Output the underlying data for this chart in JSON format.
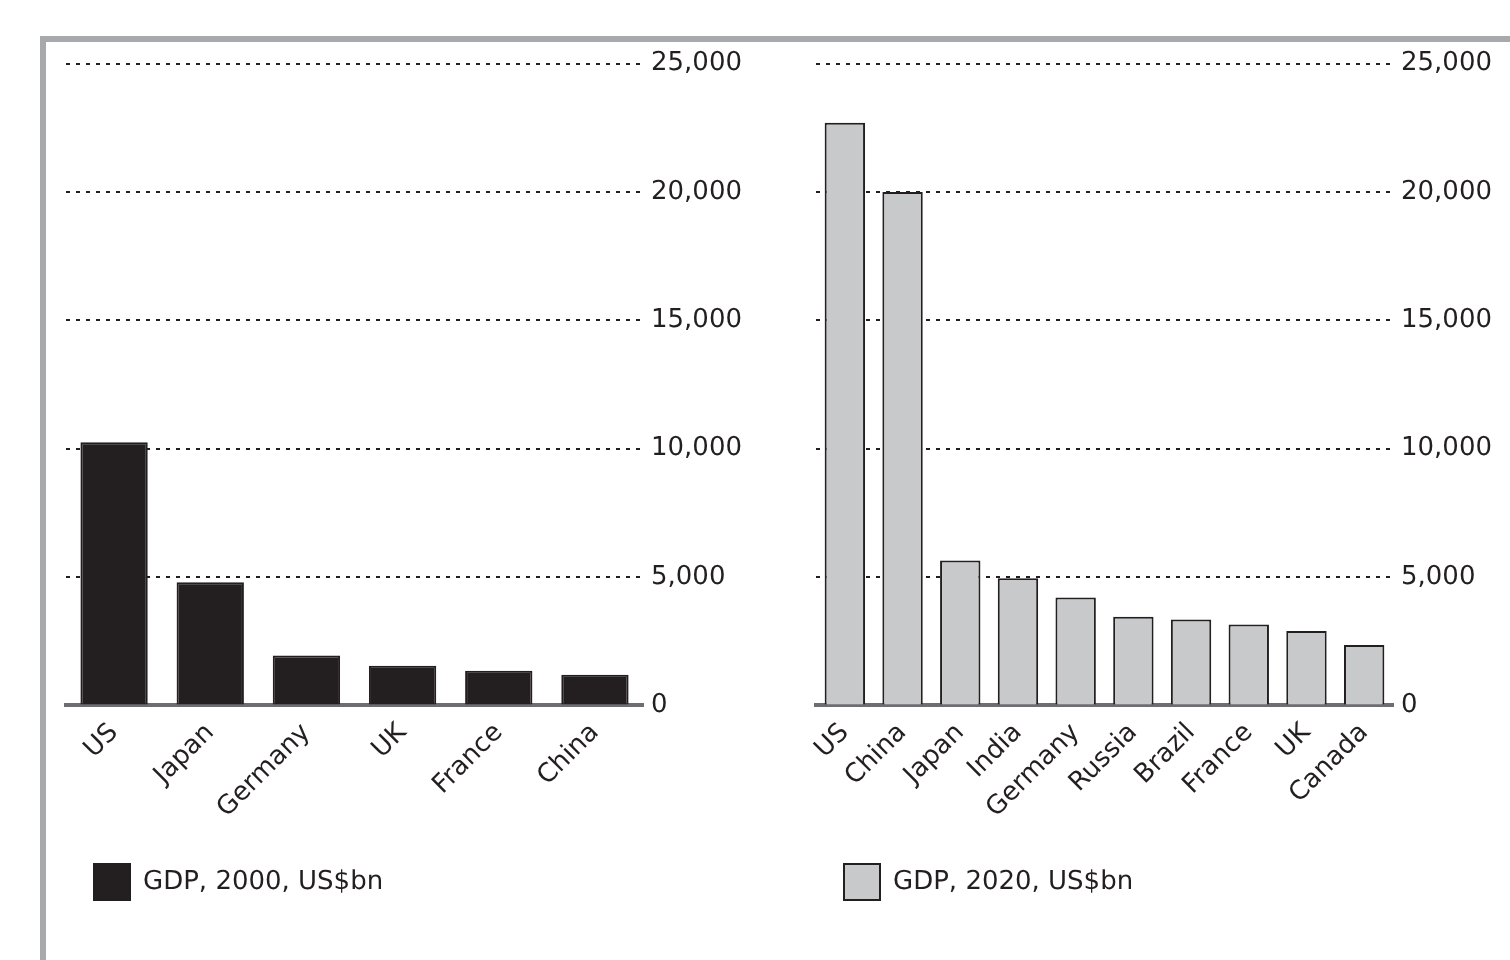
{
  "chart_data": [
    {
      "type": "bar",
      "categories": [
        "US",
        "Japan",
        "Germany",
        "UK",
        "France",
        "China"
      ],
      "series": [
        {
          "name": "GDP, 2000, US$bn",
          "color": "#231f20",
          "values": [
            10250,
            4800,
            1950,
            1550,
            1350,
            1200
          ]
        }
      ],
      "ylim": [
        0,
        25000
      ],
      "yticks": [
        0,
        {
          "value": 5000,
          "label": "5,000"
        },
        {
          "value": 10000,
          "label": "10,000"
        },
        {
          "value": 15000,
          "label": "15,000"
        },
        {
          "value": 20000,
          "label": "20,000"
        },
        {
          "value": 25000,
          "label": "25,000"
        }
      ],
      "grid": "y",
      "legend": "bottom"
    },
    {
      "type": "bar",
      "categories": [
        "US",
        "China",
        "Japan",
        "India",
        "Germany",
        "Russia",
        "Brazil",
        "France",
        "UK",
        "Canada"
      ],
      "series": [
        {
          "name": "GDP, 2020, US$bn",
          "color": "#c8c9ca",
          "values": [
            22700,
            20000,
            5650,
            4950,
            4200,
            3450,
            3350,
            3150,
            2900,
            2350
          ]
        }
      ],
      "ylim": [
        0,
        25000
      ],
      "yticks": [
        0,
        {
          "value": 5000,
          "label": "5,000"
        },
        {
          "value": 10000,
          "label": "10,000"
        },
        {
          "value": 15000,
          "label": "15,000"
        },
        {
          "value": 20000,
          "label": "20,000"
        },
        {
          "value": 25000,
          "label": "25,000"
        }
      ],
      "grid": "y",
      "legend": "bottom"
    }
  ]
}
